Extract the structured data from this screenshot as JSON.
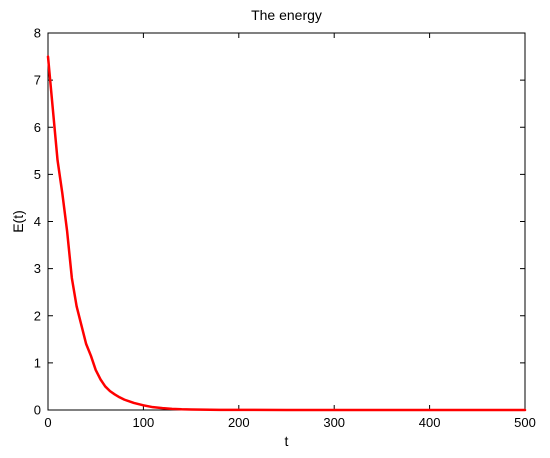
{
  "chart_data": {
    "type": "line",
    "title": "The energy",
    "xlabel": "t",
    "ylabel": "E(t)",
    "xlim": [
      0,
      500
    ],
    "ylim": [
      0,
      8
    ],
    "xticks": [
      0,
      100,
      200,
      300,
      400,
      500
    ],
    "yticks": [
      0,
      1,
      2,
      3,
      4,
      5,
      6,
      7,
      8
    ],
    "grid": false,
    "legend": "none",
    "series": [
      {
        "color": "#ff0000",
        "x": [
          0,
          5,
          10,
          15,
          20,
          25,
          30,
          35,
          40,
          45,
          50,
          55,
          60,
          65,
          70,
          75,
          80,
          90,
          100,
          110,
          120,
          130,
          140,
          150,
          160,
          170,
          180,
          200,
          250,
          300,
          350,
          400,
          450,
          500
        ],
        "y": [
          7.5,
          6.4,
          5.3,
          4.6,
          3.8,
          2.8,
          2.2,
          1.8,
          1.4,
          1.15,
          0.85,
          0.65,
          0.5,
          0.4,
          0.33,
          0.27,
          0.22,
          0.15,
          0.1,
          0.06,
          0.04,
          0.025,
          0.015,
          0.01,
          0.007,
          0.005,
          0.003,
          0.002,
          0.001,
          0.0005,
          0.0003,
          0.0002,
          0.0001,
          0.0001
        ]
      }
    ]
  }
}
